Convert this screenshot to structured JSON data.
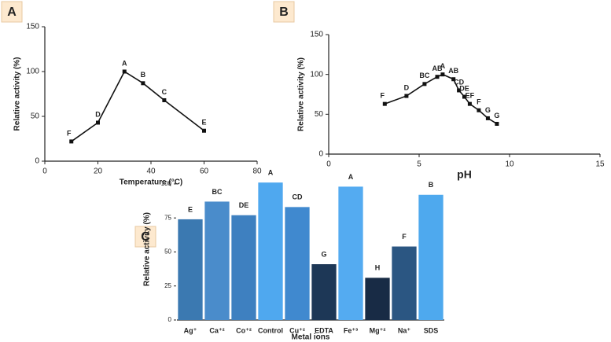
{
  "chart_data": [
    {
      "type": "line",
      "title": "A",
      "xlabel": "Temperature (°C)",
      "ylabel": "Relative activity (%)",
      "x": [
        10,
        20,
        30,
        37,
        45,
        60
      ],
      "series": [
        {
          "color": "#111111",
          "values": [
            22,
            43,
            100,
            87,
            68,
            34
          ],
          "point_labels": [
            "F",
            "D",
            "A",
            "B",
            "C",
            "E"
          ]
        }
      ],
      "xlim": [
        0,
        80
      ],
      "xticks": [
        0,
        20,
        40,
        60,
        80
      ],
      "ylim": [
        0,
        150
      ],
      "yticks": [
        0,
        50,
        100,
        150
      ]
    },
    {
      "type": "line",
      "title": "B",
      "xlabel": "pH",
      "ylabel": "Relative activity (%)",
      "x": [
        3.1,
        4.3,
        5.3,
        6.0,
        6.3,
        6.9,
        7.2,
        7.5,
        7.8,
        8.3,
        8.8,
        9.3
      ],
      "series": [
        {
          "color": "#111111",
          "values": [
            63,
            73,
            88,
            97,
            100,
            94,
            80,
            72,
            63,
            55,
            45,
            38
          ],
          "point_labels": [
            "F",
            "D",
            "BC",
            "AB",
            "A",
            "AB",
            "CD",
            "DE",
            "EF",
            "F",
            "G",
            "G"
          ]
        }
      ],
      "xlim": [
        0,
        15
      ],
      "xticks": [
        0,
        5,
        10,
        15
      ],
      "ylim": [
        0,
        150
      ],
      "yticks": [
        0,
        50,
        100,
        150
      ]
    },
    {
      "type": "bar",
      "title": "C",
      "xlabel": "Metal ions",
      "ylabel": "Relative activity (%)",
      "categories": [
        "Ag⁺",
        "Ca⁺²",
        "Co⁺²",
        "Control",
        "Cu⁺²",
        "EDTA",
        "Fe⁺³",
        "Mg⁺²",
        "Na⁺",
        "SDS"
      ],
      "values": [
        74,
        87,
        77,
        101,
        83,
        41,
        98,
        31,
        54,
        92
      ],
      "point_labels": [
        "E",
        "BC",
        "DE",
        "A",
        "CD",
        "G",
        "A",
        "H",
        "F",
        "B"
      ],
      "colors": [
        "#3b79b1",
        "#4a8ccb",
        "#3e80c0",
        "#4fa8ef",
        "#4089cf",
        "#1d3756",
        "#54abf1",
        "#182b45",
        "#2b5682",
        "#4ea9ee"
      ],
      "ylim": [
        0,
        104
      ],
      "yticks": [
        0,
        25,
        50,
        75,
        100
      ]
    }
  ]
}
